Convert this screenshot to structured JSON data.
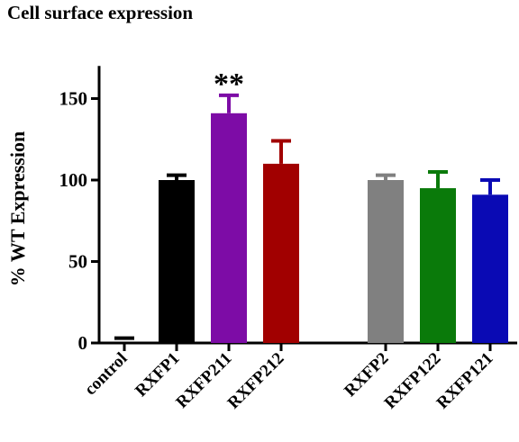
{
  "chart_data": {
    "type": "bar",
    "title": "Cell surface expression",
    "ylabel": "% WT Expression",
    "xlabel": "",
    "ylim": [
      0,
      170
    ],
    "yticks": [
      0,
      50,
      100,
      150
    ],
    "categories": [
      "control",
      "RXFP1",
      "RXFP211",
      "RXFP212",
      "RXFP2",
      "RXFP122",
      "RXFP121"
    ],
    "values": [
      2,
      100,
      141,
      110,
      100,
      95,
      91
    ],
    "errors": [
      1,
      3,
      11,
      14,
      3,
      10,
      9
    ],
    "colors": [
      "#000000",
      "#000000",
      "#7d0ca6",
      "#a10000",
      "#808080",
      "#0a7a0a",
      "#0a0ab4"
    ],
    "annotations": [
      {
        "category": "RXFP211",
        "text": "**"
      }
    ],
    "grid": false,
    "legend": "none"
  }
}
